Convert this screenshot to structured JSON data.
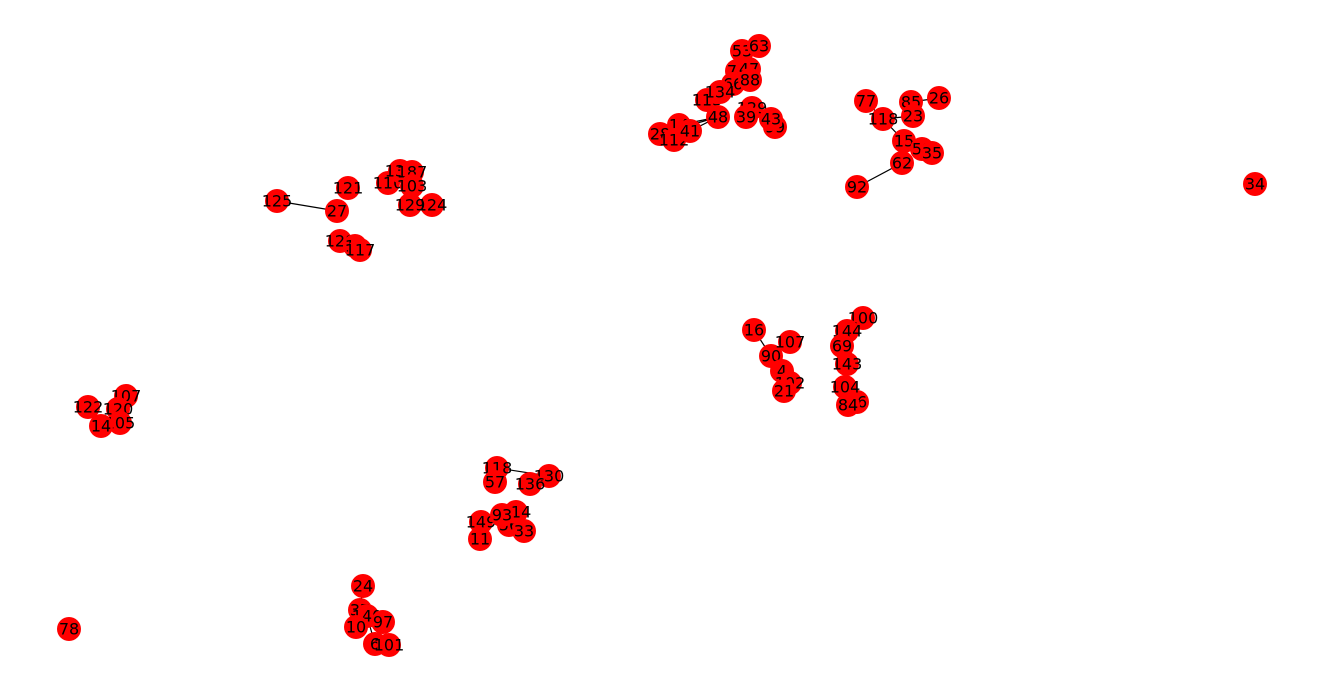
{
  "colors": {
    "node_fill": "#ff0000",
    "edge_stroke": "#000000",
    "label": "#000000",
    "background": "#ffffff"
  },
  "graph": {
    "nodes": [
      "125",
      "27",
      "121",
      "110",
      "138",
      "187",
      "103",
      "124",
      "129",
      "128",
      "12",
      "117",
      "53",
      "63",
      "74",
      "47",
      "66",
      "88",
      "113",
      "134",
      "129b",
      "39",
      "99",
      "43",
      "14",
      "28",
      "112",
      "41",
      "48",
      "77",
      "85",
      "26",
      "118",
      "23",
      "15",
      "59",
      "35",
      "62",
      "92",
      "34",
      "16",
      "100",
      "144",
      "69",
      "143",
      "90",
      "107b",
      "4",
      "102",
      "21",
      "46",
      "84",
      "104",
      "107",
      "122",
      "120",
      "105",
      "14b",
      "118b",
      "130",
      "57",
      "136",
      "149",
      "11",
      "56",
      "33",
      "114",
      "93",
      "24",
      "37",
      "140",
      "97",
      "10",
      "6",
      "101",
      "78"
    ],
    "edges": [
      [
        "125",
        "27"
      ],
      [
        "77",
        "118"
      ],
      [
        "118",
        "23"
      ],
      [
        "85",
        "23"
      ],
      [
        "85",
        "26"
      ],
      [
        "118",
        "15"
      ],
      [
        "15",
        "59"
      ],
      [
        "59",
        "35"
      ],
      [
        "15",
        "62"
      ],
      [
        "62",
        "92"
      ],
      [
        "48",
        "14"
      ],
      [
        "48",
        "28"
      ],
      [
        "48",
        "41"
      ],
      [
        "16",
        "90"
      ],
      [
        "144",
        "100"
      ],
      [
        "144",
        "69"
      ],
      [
        "24",
        "37"
      ],
      [
        "37",
        "140"
      ],
      [
        "140",
        "97"
      ],
      [
        "140",
        "10"
      ],
      [
        "140",
        "6"
      ],
      [
        "6",
        "101"
      ],
      [
        "118b",
        "130"
      ]
    ]
  }
}
